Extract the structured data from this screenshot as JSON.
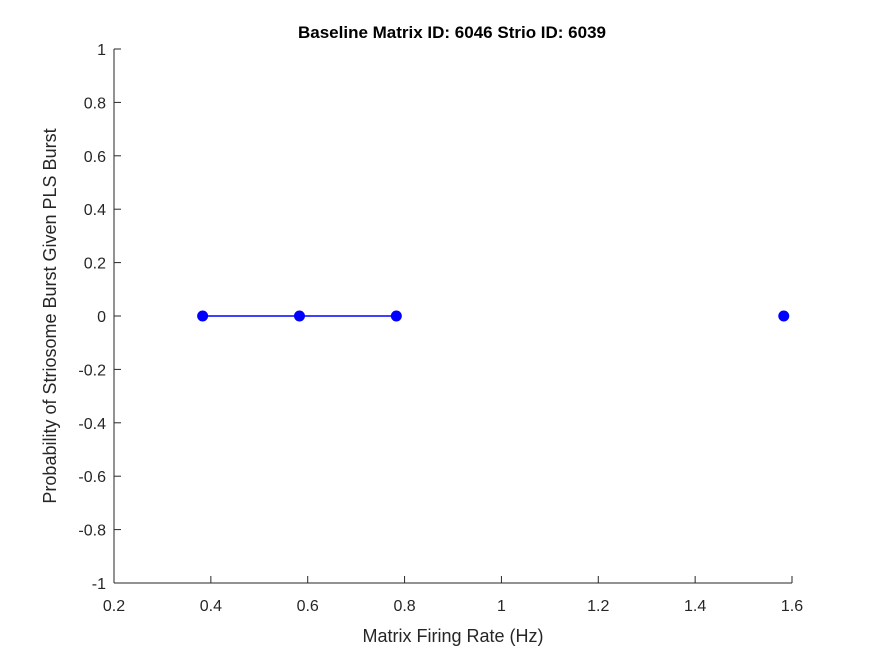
{
  "chart_data": {
    "type": "line",
    "title": "Baseline Matrix ID: 6046 Strio ID: 6039",
    "xlabel": "Matrix Firing Rate (Hz)",
    "ylabel": "Probability of Striosome Burst Given PLS Burst",
    "xlim": [
      0.2,
      1.6
    ],
    "ylim": [
      -1,
      1
    ],
    "xticks": [
      0.2,
      0.4,
      0.6,
      0.8,
      1,
      1.2,
      1.4,
      1.6
    ],
    "xtick_labels": [
      "0.2",
      "0.4",
      "0.6",
      "0.8",
      "1",
      "1.2",
      "1.4",
      "1.6"
    ],
    "yticks": [
      -1,
      -0.8,
      -0.6,
      -0.4,
      -0.2,
      0,
      0.2,
      0.4,
      0.6,
      0.8,
      1
    ],
    "ytick_labels": [
      "-1",
      "-0.8",
      "-0.6",
      "-0.4",
      "-0.2",
      "0",
      "0.2",
      "0.4",
      "0.6",
      "0.8",
      "1"
    ],
    "grid": false,
    "series": [
      {
        "color": "#0000ff",
        "points": [
          {
            "x": 0.383,
            "y": 0
          },
          {
            "x": 0.583,
            "y": 0
          },
          {
            "x": 0.783,
            "y": 0
          },
          {
            "x": 1.583,
            "y": 0
          }
        ],
        "line_segments": [
          [
            0,
            1
          ],
          [
            1,
            2
          ]
        ]
      }
    ]
  }
}
